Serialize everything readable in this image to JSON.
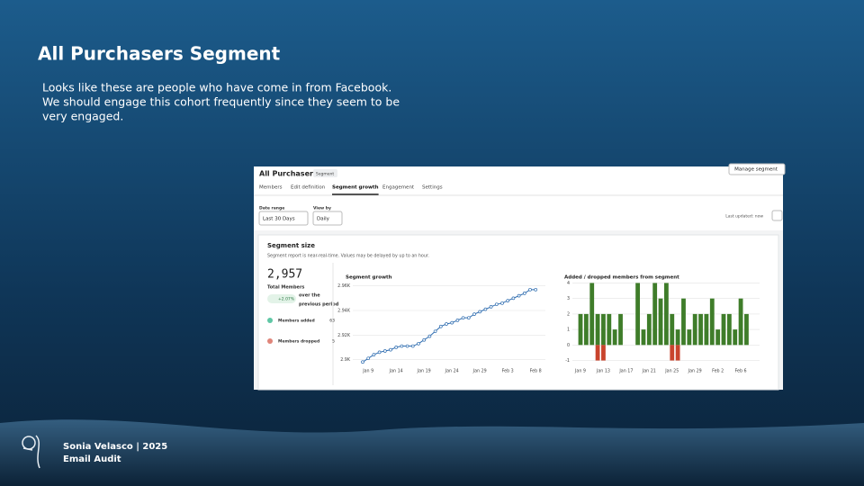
{
  "slide": {
    "title": "All Purchasers Segment",
    "body": [
      "Looks like these are people who have come in from Facebook.",
      "We should engage this cohort frequently since they seem to be",
      "very engaged."
    ],
    "footer": [
      "Sonia Velasco | 2025",
      "Email Audit"
    ]
  },
  "screenshot": {
    "heading": "All Purchasers",
    "badge": "Segment",
    "manage": "Manage segment",
    "tabs": [
      "Members",
      "Edit definition",
      "Segment growth",
      "Engagement",
      "Settings"
    ],
    "active_tab": 2,
    "date_range_label": "Date range",
    "date_range": "Last 30 Days",
    "view_by_label": "View by",
    "view_by": "Daily",
    "last_updated": "Last updated: now",
    "section_title": "Segment size",
    "section_note": "Segment report is near-real-time. Values may be delayed by up to an hour.",
    "total": "2,957",
    "total_label": "Total Members",
    "change": "+2.07%",
    "change_note": [
      "over the",
      "previous period"
    ],
    "legend": [
      {
        "name": "Members added",
        "count": 63,
        "color": "#5fc7a5"
      },
      {
        "name": "Members dropped",
        "count": 5,
        "color": "#e0857a"
      }
    ]
  },
  "chart_data": [
    {
      "type": "line",
      "title": "Segment growth",
      "color": "#2f6db0",
      "categories": [
        null,
        "Jan 9",
        null,
        null,
        null,
        null,
        "Jan 14",
        null,
        null,
        null,
        null,
        "Jan 19",
        null,
        null,
        null,
        null,
        "Jan 24",
        null,
        null,
        null,
        null,
        "Jan 29",
        null,
        null,
        null,
        null,
        "Feb 3",
        null,
        null,
        null,
        null,
        "Feb 8"
      ],
      "values": [
        2898,
        2901,
        2904,
        2906,
        2907,
        2908,
        2910,
        2911,
        2911,
        2911,
        2913,
        2916,
        2919,
        2923,
        2927,
        2929,
        2930,
        2932,
        2934,
        2934,
        2937,
        2939,
        2941,
        2943,
        2945,
        2946,
        2948,
        2950,
        2952,
        2954,
        2957,
        2957
      ],
      "ylim": [
        2896,
        2962
      ],
      "yticks": [
        {
          "value": 2900,
          "label": "2.9K"
        },
        {
          "value": 2920,
          "label": "2.92K"
        },
        {
          "value": 2940,
          "label": "2.94K"
        },
        {
          "value": 2960,
          "label": "2.96K"
        }
      ],
      "grid": true
    },
    {
      "type": "bar",
      "title": "Added / dropped members from segment",
      "categories": [
        "Jan 9",
        null,
        null,
        null,
        "Jan 13",
        null,
        null,
        null,
        "Jan 17",
        null,
        null,
        null,
        "Jan 21",
        null,
        null,
        null,
        "Jan 25",
        null,
        null,
        null,
        "Jan 29",
        null,
        null,
        null,
        "Feb 2",
        null,
        null,
        null,
        "Feb 6",
        null
      ],
      "series": [
        {
          "name": "Members added",
          "color": "#3f7d2a",
          "values": [
            2,
            2,
            4,
            2,
            2,
            2,
            1,
            2,
            0,
            0,
            4,
            1,
            2,
            4,
            3,
            4,
            2,
            1,
            3,
            1,
            2,
            2,
            2,
            3,
            1,
            2,
            2,
            1,
            3,
            2
          ]
        },
        {
          "name": "Members dropped",
          "color": "#c9442d",
          "values": [
            0,
            0,
            0,
            -1,
            -1,
            0,
            0,
            0,
            0,
            0,
            0,
            0,
            0,
            0,
            0,
            0,
            -1,
            -1,
            0,
            0,
            0,
            0,
            0,
            0,
            0,
            0,
            0,
            0,
            0,
            0
          ]
        }
      ],
      "ylim": [
        -1.2,
        4.2
      ],
      "yticks": [
        -1,
        0,
        1,
        2,
        3,
        4
      ],
      "grid": true
    }
  ]
}
